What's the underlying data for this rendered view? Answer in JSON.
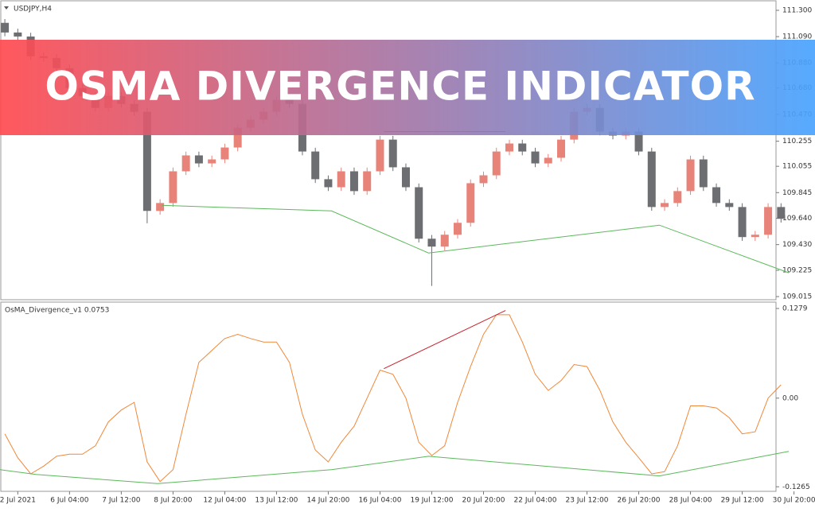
{
  "banner": "OSMA DIVERGENCE INDICATOR",
  "chart_data": [
    {
      "type": "candlestick",
      "title": "USDJPY,H4",
      "xlim": [
        -0.375,
        62.625
      ],
      "ylim": [
        108.99,
        111.376
      ],
      "yticks": [
        {
          "value": 111.3,
          "label": "111.300"
        },
        {
          "value": 111.09,
          "label": "111.090"
        },
        {
          "value": 110.88,
          "label": "110.880"
        },
        {
          "value": 110.68,
          "label": "110.680"
        },
        {
          "value": 110.47,
          "label": "110.470"
        },
        {
          "value": 110.255,
          "label": "110.255"
        },
        {
          "value": 110.055,
          "label": "110.055"
        },
        {
          "value": 109.845,
          "label": "109.845"
        },
        {
          "value": 109.64,
          "label": "109.640"
        },
        {
          "value": 109.43,
          "label": "109.430"
        },
        {
          "value": 109.225,
          "label": "109.225"
        },
        {
          "value": 109.015,
          "label": "109.015"
        }
      ],
      "up_color": "#e8837a",
      "down_color": "#6d6e72",
      "open": [
        111.2,
        111.123,
        111.091,
        110.933,
        110.92,
        110.838,
        110.68,
        110.616,
        110.521,
        110.616,
        110.553,
        110.49,
        109.699,
        109.762,
        110.015,
        110.142,
        110.078,
        110.11,
        110.205,
        110.363,
        110.427,
        110.49,
        110.585,
        110.553,
        110.173,
        109.952,
        109.888,
        110.015,
        109.857,
        110.015,
        110.268,
        110.047,
        109.888,
        109.477,
        109.414,
        109.509,
        109.604,
        109.92,
        109.983,
        110.173,
        110.237,
        110.173,
        110.078,
        110.123,
        110.268,
        110.49,
        110.521,
        110.332,
        110.3,
        110.332,
        110.173,
        109.73,
        109.762,
        109.857,
        110.11,
        109.888,
        109.762,
        109.73,
        109.49,
        109.509,
        109.73
      ],
      "high": [
        111.23,
        111.153,
        111.121,
        110.963,
        110.95,
        110.868,
        110.71,
        110.646,
        110.646,
        110.646,
        110.583,
        110.52,
        109.792,
        110.045,
        110.172,
        110.172,
        110.14,
        110.235,
        110.393,
        110.457,
        110.52,
        110.615,
        110.615,
        110.583,
        110.203,
        109.982,
        110.045,
        110.045,
        110.045,
        110.298,
        110.298,
        110.077,
        109.918,
        109.507,
        109.539,
        109.634,
        109.95,
        110.013,
        110.203,
        110.267,
        110.267,
        110.203,
        110.153,
        110.298,
        110.52,
        110.551,
        110.551,
        110.362,
        110.362,
        110.362,
        110.203,
        109.792,
        109.887,
        110.14,
        110.14,
        109.918,
        109.792,
        109.76,
        109.539,
        109.76,
        109.76
      ],
      "low": [
        111.093,
        111.061,
        110.903,
        110.89,
        110.808,
        110.65,
        110.586,
        110.491,
        110.491,
        110.523,
        110.46,
        109.6,
        109.669,
        109.732,
        109.985,
        110.048,
        110.048,
        110.08,
        110.175,
        110.333,
        110.397,
        110.46,
        110.523,
        110.143,
        109.922,
        109.858,
        109.858,
        109.827,
        109.827,
        109.985,
        110.017,
        109.858,
        109.447,
        109.1,
        109.384,
        109.479,
        109.574,
        109.89,
        109.953,
        110.143,
        110.143,
        110.048,
        110.048,
        110.093,
        110.238,
        110.46,
        110.302,
        110.27,
        110.27,
        110.143,
        109.7,
        109.7,
        109.732,
        109.827,
        109.858,
        109.732,
        109.7,
        109.46,
        109.46,
        109.479,
        109.606
      ],
      "close": [
        111.123,
        111.091,
        110.933,
        110.92,
        110.838,
        110.68,
        110.616,
        110.521,
        110.616,
        110.553,
        110.49,
        109.699,
        109.762,
        110.015,
        110.142,
        110.078,
        110.11,
        110.205,
        110.363,
        110.427,
        110.49,
        110.585,
        110.553,
        110.173,
        109.952,
        109.888,
        110.015,
        109.857,
        110.015,
        110.268,
        110.047,
        109.888,
        109.477,
        109.414,
        109.509,
        109.604,
        109.92,
        109.983,
        110.173,
        110.237,
        110.173,
        110.078,
        110.123,
        110.268,
        110.49,
        110.521,
        110.332,
        110.3,
        110.332,
        110.173,
        109.73,
        109.762,
        109.857,
        110.11,
        109.888,
        109.762,
        109.73,
        109.49,
        109.509,
        109.73,
        109.636
      ],
      "lines": [
        {
          "color": "#5cb85c",
          "x": [
            12.1,
            25.25,
            32.75,
            50.6,
            60.6
          ],
          "values": [
            109.743,
            109.699,
            109.363,
            109.585,
            109.205
          ]
        },
        {
          "color": "#b0283c",
          "x": [
            29.3,
            38.7
          ],
          "values": [
            110.332,
            110.332
          ]
        }
      ]
    },
    {
      "type": "line",
      "title": "OsMA_Divergence_v1 0.0753",
      "xlim": [
        -0.375,
        62.625
      ],
      "ylim": [
        -0.133,
        0.137
      ],
      "yticks": [
        0.1279,
        {
          "value": 0,
          "label": "0.00"
        },
        -0.1265
      ],
      "xticks": [
        {
          "value": 1,
          "label": "2 Jul 2021"
        },
        {
          "value": 5,
          "label": "6 Jul 04:00"
        },
        {
          "value": 9,
          "label": "7 Jul 12:00"
        },
        {
          "value": 13,
          "label": "8 Jul 20:00"
        },
        {
          "value": 17,
          "label": "12 Jul 04:00"
        },
        {
          "value": 21,
          "label": "13 Jul 12:00"
        },
        {
          "value": 25,
          "label": "14 Jul 20:00"
        },
        {
          "value": 29,
          "label": "16 Jul 04:00"
        },
        {
          "value": 33,
          "label": "19 Jul 12:00"
        },
        {
          "value": 37,
          "label": "20 Jul 20:00"
        },
        {
          "value": 41,
          "label": "22 Jul 04:00"
        },
        {
          "value": 45,
          "label": "23 Jul 12:00"
        },
        {
          "value": 49,
          "label": "26 Jul 20:00"
        },
        {
          "value": 53,
          "label": "28 Jul 04:00"
        },
        {
          "value": 57,
          "label": "29 Jul 12:00"
        },
        {
          "value": 61,
          "label": "30 Jul 20:00"
        }
      ],
      "color": "#f0883a",
      "values": [
        -0.051,
        -0.085,
        -0.108,
        -0.097,
        -0.083,
        -0.08,
        -0.08,
        -0.068,
        -0.034,
        -0.017,
        -0.006,
        -0.091,
        -0.119,
        -0.102,
        -0.023,
        0.051,
        0.068,
        0.085,
        0.091,
        0.085,
        0.08,
        0.08,
        0.051,
        -0.023,
        -0.074,
        -0.091,
        -0.063,
        -0.04,
        0,
        0.04,
        0.034,
        0,
        -0.063,
        -0.082,
        -0.068,
        -0.006,
        0.045,
        0.091,
        0.119,
        0.119,
        0.08,
        0.034,
        0.011,
        0.025,
        0.048,
        0.045,
        0.011,
        -0.034,
        -0.063,
        -0.085,
        -0.108,
        -0.105,
        -0.068,
        -0.011,
        -0.011,
        -0.014,
        -0.028,
        -0.051,
        -0.048,
        0,
        0.019
      ],
      "lines": [
        {
          "color": "#5cb85c",
          "x": [
            -0.4,
            2.4,
            11.8,
            25.25,
            32.75,
            50.6,
            60.6
          ],
          "values": [
            -0.102,
            -0.109,
            -0.122,
            -0.102,
            -0.083,
            -0.111,
            -0.076
          ]
        },
        {
          "color": "#c8202e",
          "x": [
            29.3,
            38.7
          ],
          "values": [
            0.042,
            0.125
          ]
        }
      ]
    }
  ]
}
